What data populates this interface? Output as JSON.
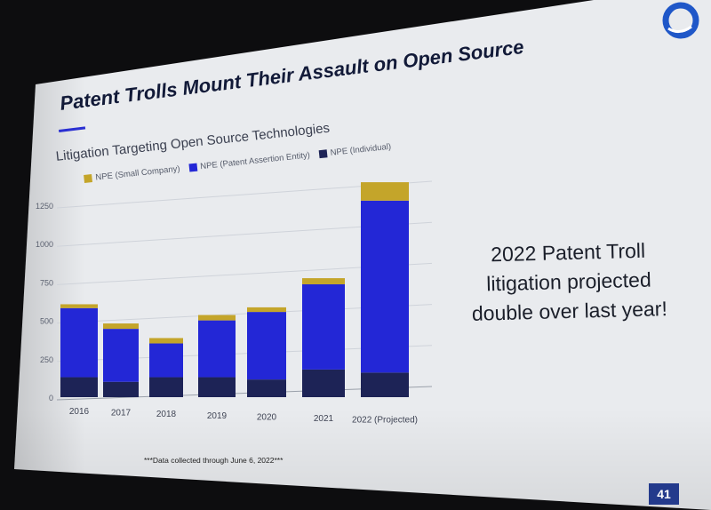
{
  "slide": {
    "title": "Patent Trolls Mount Their Assault on Open Source",
    "callout_lines": [
      "2022 Patent Troll",
      "litigation projected",
      "double over last year!"
    ],
    "footnote": "***Data collected through June 6, 2022***",
    "page_number": "41",
    "colors": {
      "background": "#e9ebee",
      "accent": "#2a2fd2",
      "page_badge": "#233a8c"
    }
  },
  "chart_data": {
    "type": "bar",
    "stacked": true,
    "title": "Litigation Targeting Open Source Technologies",
    "categories": [
      "2016",
      "2017",
      "2018",
      "2019",
      "2020",
      "2021",
      "2022 (Projected)"
    ],
    "series": [
      {
        "name": "NPE (Individual)",
        "color": "#1d2356",
        "values": [
          130,
          100,
          130,
          130,
          115,
          180,
          160
        ]
      },
      {
        "name": "NPE (Patent Assertion Entity)",
        "color": "#2327d6",
        "values": [
          450,
          345,
          220,
          370,
          440,
          555,
          1120
        ]
      },
      {
        "name": "NPE (Small Company)",
        "color": "#c4a52a",
        "values": [
          25,
          35,
          35,
          35,
          30,
          40,
          120
        ]
      }
    ],
    "ylim": [
      0,
      1400
    ],
    "yticks": [
      0,
      250,
      500,
      750,
      1000,
      1250
    ],
    "grid": true,
    "legend_position": "top"
  }
}
